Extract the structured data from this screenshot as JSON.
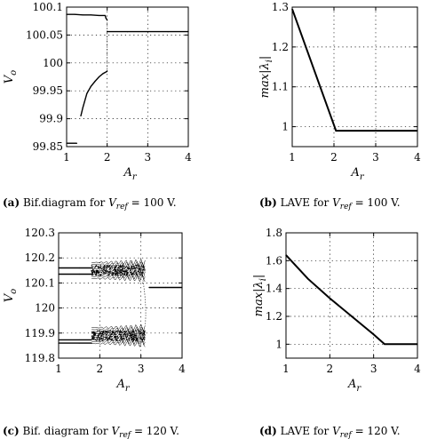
{
  "chart_data": [
    {
      "type": "scatter",
      "caption_letter": "(a)",
      "caption_text": "Bif.diagram for",
      "caption_var": "V",
      "caption_sub": "ref",
      "caption_value": "= 100 V.",
      "xlabel": "A",
      "xlabel_sub": "r",
      "ylabel": "V",
      "ylabel_sub": "o",
      "xlim": [
        1,
        4
      ],
      "ylim": [
        99.85,
        100.1
      ],
      "xticks": [
        1,
        2,
        3,
        4
      ],
      "xtick_labels": [
        "1",
        "2",
        "3",
        "4"
      ],
      "yticks": [
        99.85,
        99.9,
        99.95,
        100,
        100.05,
        100.1
      ],
      "ytick_labels": [
        "99.85",
        "99.9",
        "99.95",
        "100",
        "100.05",
        "100.1"
      ],
      "grid": "dotted",
      "series": [
        {
          "x": [
            1.0,
            1.2,
            1.4,
            1.6,
            1.8,
            1.95
          ],
          "values": [
            100.087,
            100.087,
            100.086,
            100.086,
            100.085,
            100.085
          ]
        },
        {
          "x": [
            1.95,
            1.97,
            2.0
          ],
          "values": [
            100.085,
            100.08,
            100.077
          ]
        },
        {
          "x": [
            1.35,
            1.4,
            1.5,
            1.6,
            1.7,
            1.8,
            1.9,
            2.0
          ],
          "values": [
            99.905,
            99.92,
            99.945,
            99.958,
            99.967,
            99.975,
            99.981,
            99.985
          ]
        },
        {
          "x": [
            1.0,
            1.25
          ],
          "values": [
            99.856,
            99.856
          ]
        },
        {
          "x": [
            2.0,
            2.5,
            3.0,
            3.5,
            4.0
          ],
          "values": [
            100.056,
            100.056,
            100.056,
            100.056,
            100.056
          ]
        }
      ]
    },
    {
      "type": "line",
      "caption_letter": "(b)",
      "caption_text": "LAVE for",
      "caption_var": "V",
      "caption_sub": "ref",
      "caption_value": "= 100 V.",
      "xlabel": "A",
      "xlabel_sub": "r",
      "ylabel": "max|λ",
      "ylabel_sub": "i",
      "ylabel_tail": "|",
      "xlim": [
        1,
        4
      ],
      "ylim": [
        0.95,
        1.3
      ],
      "xticks": [
        1,
        2,
        3,
        4
      ],
      "xtick_labels": [
        "1",
        "2",
        "3",
        "4"
      ],
      "yticks": [
        1,
        1.1,
        1.2,
        1.3
      ],
      "ytick_labels": [
        "1",
        "1.1",
        "1.2",
        "1.3"
      ],
      "grid": "dotted",
      "series": [
        {
          "x": [
            1.0,
            2.05,
            4.0
          ],
          "values": [
            1.295,
            0.99,
            0.99
          ]
        }
      ]
    },
    {
      "type": "scatter",
      "caption_letter": "(c)",
      "caption_text": "Bif. diagram for",
      "caption_var": "V",
      "caption_sub": "ref",
      "caption_value": "= 120 V.",
      "xlabel": "A",
      "xlabel_sub": "r",
      "ylabel": "V",
      "ylabel_sub": "o",
      "xlim": [
        1,
        4
      ],
      "ylim": [
        119.8,
        120.3
      ],
      "xticks": [
        1,
        2,
        3,
        4
      ],
      "xtick_labels": [
        "1",
        "2",
        "3",
        "4"
      ],
      "yticks": [
        119.8,
        119.9,
        120,
        120.1,
        120.2,
        120.3
      ],
      "ytick_labels": [
        "119.8",
        "119.9",
        "120",
        "120.1",
        "120.2",
        "120.3"
      ],
      "grid": "dotted",
      "series": [
        {
          "x": [
            1.0,
            1.5,
            1.8
          ],
          "values": [
            120.16,
            120.16,
            120.16
          ]
        },
        {
          "x": [
            1.0,
            1.5,
            1.8
          ],
          "values": [
            120.135,
            120.135,
            120.135
          ]
        },
        {
          "x": [
            1.0,
            1.5,
            1.8
          ],
          "values": [
            119.873,
            119.873,
            119.873
          ]
        },
        {
          "x": [
            1.0,
            1.5,
            1.8
          ],
          "values": [
            119.86,
            119.86,
            119.86
          ]
        },
        {
          "x": [
            3.2,
            3.6,
            4.0
          ],
          "values": [
            120.082,
            120.082,
            120.082
          ]
        }
      ],
      "bands": [
        {
          "x_from": 1.8,
          "x_to": 3.1,
          "y_low": 120.11,
          "y_high": 120.19
        },
        {
          "x_from": 1.8,
          "x_to": 3.1,
          "y_low": 119.85,
          "y_high": 119.93
        }
      ]
    },
    {
      "type": "line",
      "caption_letter": "(d)",
      "caption_text": "LAVE for",
      "caption_var": "V",
      "caption_sub": "ref",
      "caption_value": "= 120 V.",
      "xlabel": "A",
      "xlabel_sub": "r",
      "ylabel": "max|λ",
      "ylabel_sub": "i",
      "ylabel_tail": "|",
      "xlim": [
        1,
        4
      ],
      "ylim": [
        0.9,
        1.8
      ],
      "xticks": [
        1,
        2,
        3,
        4
      ],
      "xtick_labels": [
        "1",
        "2",
        "3",
        "4"
      ],
      "yticks": [
        1,
        1.2,
        1.4,
        1.6,
        1.8
      ],
      "ytick_labels": [
        "1",
        "1.2",
        "1.4",
        "1.6",
        "1.8"
      ],
      "grid": "dotted",
      "series": [
        {
          "x": [
            1.0,
            1.5,
            2.0,
            2.5,
            3.0,
            3.25,
            4.0
          ],
          "values": [
            1.64,
            1.47,
            1.33,
            1.2,
            1.07,
            1.0,
            1.0
          ]
        }
      ]
    }
  ]
}
